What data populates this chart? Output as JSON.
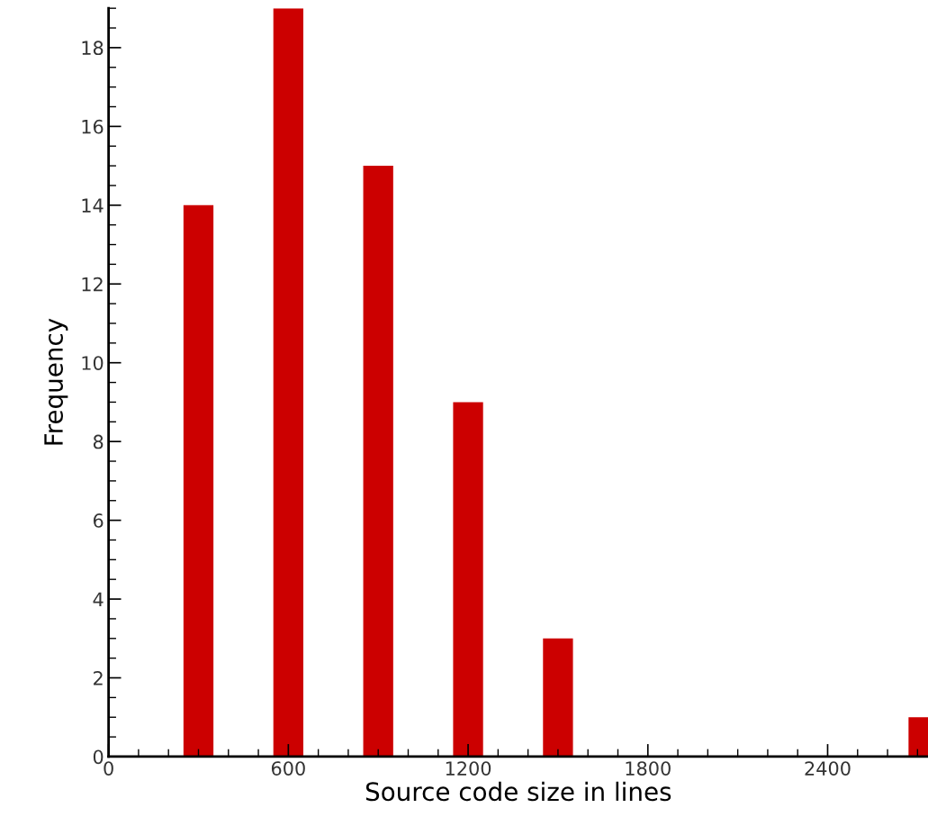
{
  "chart_data": {
    "type": "bar",
    "xlabel": "Source code size in lines",
    "ylabel": "Frequency",
    "x": [
      300,
      600,
      900,
      1200,
      1500,
      2720
    ],
    "values": [
      14,
      19,
      15,
      9,
      3,
      1
    ],
    "color": "#cc0000",
    "xlim": [
      0,
      2735
    ],
    "xticks": [
      0,
      600,
      1200,
      1800,
      2400
    ],
    "ylim": [
      0,
      19
    ],
    "yticks": [
      0,
      2,
      4,
      6,
      8,
      10,
      12,
      14,
      16,
      18
    ],
    "grid": false,
    "legend": false
  }
}
